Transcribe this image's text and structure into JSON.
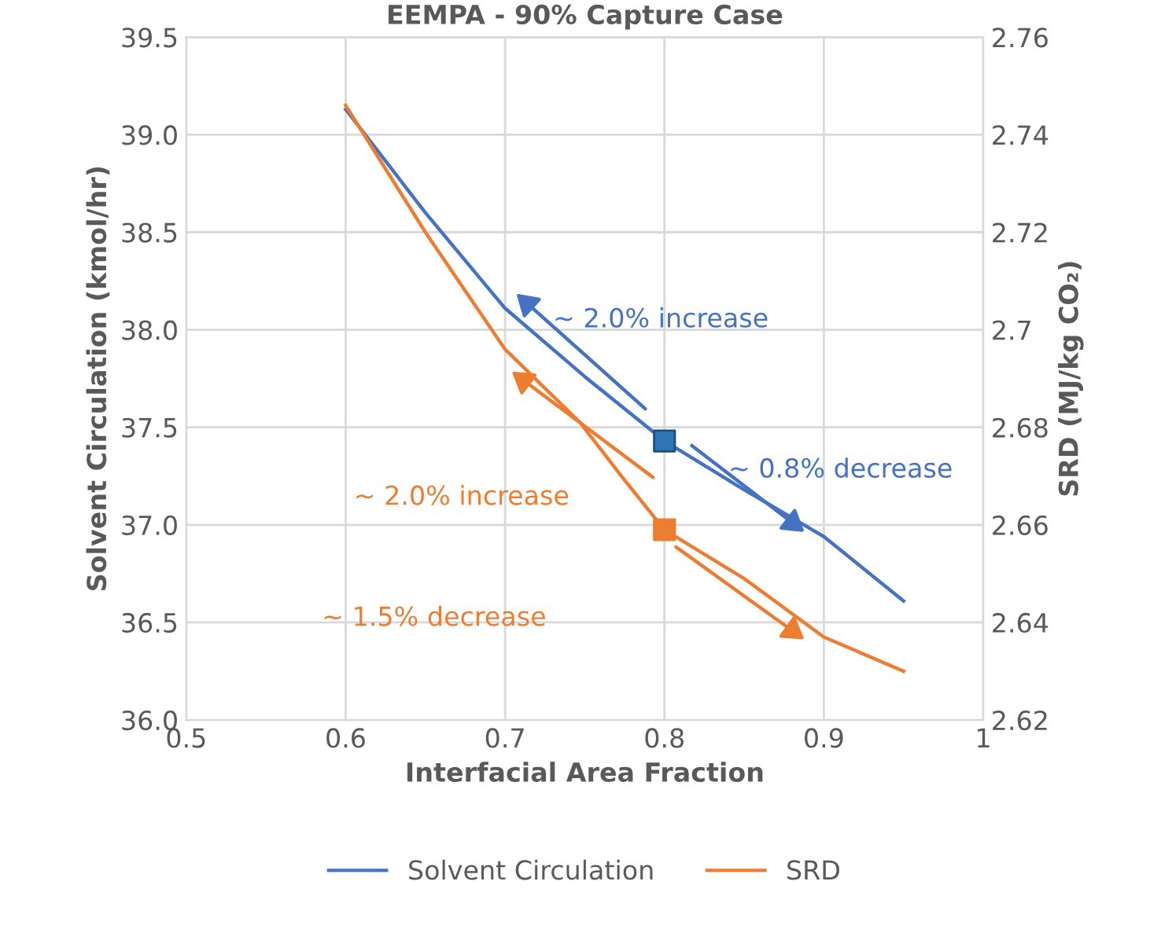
{
  "chart_data": {
    "type": "line",
    "title": "EEMPA - 90% Capture Case",
    "xlabel": "Interfacial Area Fraction",
    "ylabel": "Solvent Circulation (kmol/hr)",
    "y2label": "SRD (MJ/kg CO₂)",
    "series": [
      {
        "name": "Solvent Circulation",
        "color": "#4472c4",
        "x": [
          0.6,
          0.65,
          0.7,
          0.75,
          0.8,
          0.85,
          0.9,
          0.95
        ],
        "values": [
          39.13,
          38.6,
          38.11,
          37.76,
          37.43,
          37.18,
          36.94,
          36.61
        ]
      },
      {
        "name": "SRD",
        "color": "#ed7d31",
        "axis": "y2",
        "x": [
          0.6,
          0.65,
          0.7,
          0.747,
          0.773,
          0.8,
          0.85,
          0.9,
          0.95
        ],
        "values": [
          2.746,
          2.72,
          2.696,
          2.681,
          2.67,
          2.659,
          2.649,
          2.637,
          2.63
        ]
      },
      {
        "type": "scatter",
        "marker": "square",
        "color": "#2e75b6",
        "x": [
          0.8
        ],
        "values": [
          37.43
        ]
      },
      {
        "type": "scatter",
        "marker": "square",
        "color": "#ed7d31",
        "axis": "y2",
        "x": [
          0.8
        ],
        "values": [
          2.659
        ]
      }
    ],
    "xlim": [
      0.5,
      1.0
    ],
    "xticks": [
      0.5,
      0.6,
      0.7,
      0.8,
      0.9,
      {
        "value": 1.0,
        "label": "1"
      }
    ],
    "ylim": [
      36.0,
      39.5
    ],
    "yticks": [
      {
        "value": 36.0,
        "label": "36.0"
      },
      36.5,
      {
        "value": 37.0,
        "label": "37.0"
      },
      37.5,
      {
        "value": 38.0,
        "label": "38.0"
      },
      38.5,
      {
        "value": 39.0,
        "label": "39.0"
      },
      39.5
    ],
    "y2lim": [
      2.62,
      2.76
    ],
    "y2ticks": [
      2.62,
      2.64,
      2.66,
      2.68,
      {
        "value": 2.7,
        "label": "2.7"
      },
      2.72,
      2.74,
      2.76
    ],
    "annotations": [
      "~ 2.0% increase",
      "~ 0.8% decrease",
      "~ 2.0% increase",
      "~ 1.5% decrease"
    ],
    "grid": true,
    "legend": "bottom",
    "marker": "none",
    "line_style": "solid"
  }
}
